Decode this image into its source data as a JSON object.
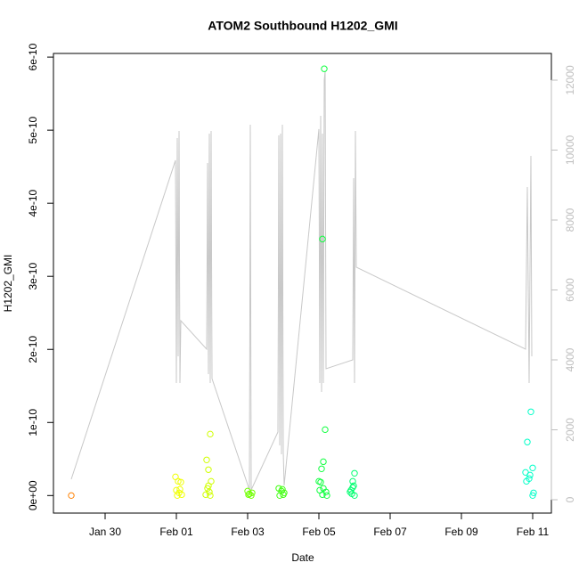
{
  "chart_data": {
    "type": "scatter",
    "title": "ATOM2 Southbound H1202_GMI",
    "x_label": "Date",
    "y_label": "H1202_GMI",
    "xlim": [
      28.55,
      42.525
    ],
    "xticks": [
      {
        "value": 30,
        "label": "Jan 30"
      },
      {
        "value": 32,
        "label": "Feb 01"
      },
      {
        "value": 34,
        "label": "Feb 03"
      },
      {
        "value": 36,
        "label": "Feb 05"
      },
      {
        "value": 38,
        "label": "Feb 07"
      },
      {
        "value": 40,
        "label": "Feb 09"
      },
      {
        "value": 42,
        "label": "Feb 11"
      }
    ],
    "ylim": [
      -2.4e-11,
      6.05e-10
    ],
    "yticks": [
      {
        "value": 0,
        "label": "0e+00"
      },
      {
        "value": 1e-10,
        "label": "1e-10"
      },
      {
        "value": 2e-10,
        "label": "2e-10"
      },
      {
        "value": 3e-10,
        "label": "3e-10"
      },
      {
        "value": 4e-10,
        "label": "4e-10"
      },
      {
        "value": 5e-10,
        "label": "5e-10"
      },
      {
        "value": 6e-10,
        "label": "6e-10"
      }
    ],
    "y2lim": [
      -382,
      12764
    ],
    "y2ticks": [
      0,
      2000,
      4000,
      6000,
      8000,
      10000,
      12000
    ],
    "y2_color": "#bebebe",
    "series": [
      {
        "type": "line",
        "axis": "y2",
        "color": "#c8c8c8",
        "x": [
          29.05,
          31.975,
          32.0,
          32.025,
          32.05,
          32.075,
          32.1,
          32.125,
          32.85,
          32.875,
          32.9,
          32.925,
          32.95,
          32.975,
          33.0,
          34.05,
          34.075,
          34.1,
          34.85,
          34.875,
          34.9,
          34.925,
          34.95,
          34.975,
          35.0,
          35.025,
          36.0,
          36.025,
          36.05,
          36.075,
          36.1,
          36.125,
          36.15,
          36.175,
          36.2,
          36.95,
          36.975,
          37.0,
          37.025,
          37.05,
          41.8,
          41.85,
          41.9,
          41.95,
          41.975
        ],
        "values": [
          586,
          9708,
          3338,
          10345,
          4102,
          10549,
          3338,
          5121,
          4306,
          9631,
          3593,
          10472,
          3338,
          10549,
          3465,
          280,
          10727,
          280,
          1936,
          10421,
          1554,
          10472,
          1299,
          10727,
          1350,
          408,
          10600,
          3338,
          10982,
          3083,
          10472,
          3338,
          12001,
          12256,
          3746,
          4000,
          9198,
          3338,
          10549,
          6650,
          4306,
          8943,
          3338,
          9835,
          4102
        ]
      },
      {
        "type": "points",
        "color": "#ff8000",
        "x": [
          29.05
        ],
        "values": [
          0
        ]
      },
      {
        "type": "points",
        "color": "#f0ff00",
        "x": [
          31.975,
          32.05,
          32.125,
          32.0,
          32.075,
          32.15,
          32.025,
          32.1
        ],
        "values": [
          2.56e-11,
          1.95e-11,
          1.83e-11,
          7.3e-12,
          3.7e-12,
          1.2e-12,
          0,
          8.5e-12
        ]
      },
      {
        "type": "points",
        "color": "#d0ff00",
        "x": [
          32.85,
          32.95,
          32.9,
          32.975,
          32.875,
          32.925,
          32.825,
          32.95,
          32.9
        ],
        "values": [
          4.88e-11,
          8.41e-11,
          3.54e-11,
          1.95e-11,
          9.8e-12,
          4.9e-12,
          1.2e-12,
          0,
          1.34e-11
        ]
      },
      {
        "type": "points",
        "color": "#70ff00",
        "x": [
          34.0,
          34.05,
          34.1,
          34.025,
          34.125
        ],
        "values": [
          6.1e-12,
          2.4e-12,
          0,
          1.2e-12,
          3.7e-12
        ]
      },
      {
        "type": "points",
        "color": "#40ff10",
        "x": [
          34.875,
          34.95,
          35.0,
          34.9,
          35.025,
          34.975
        ],
        "values": [
          9.8e-12,
          6.1e-12,
          1.2e-12,
          0,
          3.7e-12,
          8.5e-12
        ]
      },
      {
        "type": "points",
        "color": "#10ff40",
        "x": [
          36.15,
          36.1,
          36.175,
          36.125,
          36.075,
          36.0,
          36.05,
          36.125,
          36.025,
          36.2,
          36.1,
          36.225
        ],
        "values": [
          5.84e-10,
          3.51e-10,
          9.02e-11,
          4.63e-11,
          3.66e-11,
          1.95e-11,
          1.83e-11,
          9.8e-12,
          7.3e-12,
          4.9e-12,
          1.2e-12,
          0
        ]
      },
      {
        "type": "points",
        "color": "#00ff70",
        "x": [
          37.0,
          36.95,
          36.975,
          36.9,
          36.875,
          37.0,
          36.925,
          36.95
        ],
        "values": [
          3.05e-11,
          1.95e-11,
          1.34e-11,
          7.3e-12,
          4.9e-12,
          0,
          2.4e-12,
          1.1e-11
        ]
      },
      {
        "type": "points",
        "color": "#00ffc8",
        "x": [
          41.95,
          41.85,
          41.8,
          41.925,
          42.0,
          41.825,
          41.9,
          42.025,
          42.0
        ],
        "values": [
          1.146e-10,
          7.32e-11,
          3.17e-11,
          2.8e-11,
          3.78e-11,
          1.95e-11,
          2.32e-11,
          3.7e-12,
          0
        ]
      }
    ]
  }
}
